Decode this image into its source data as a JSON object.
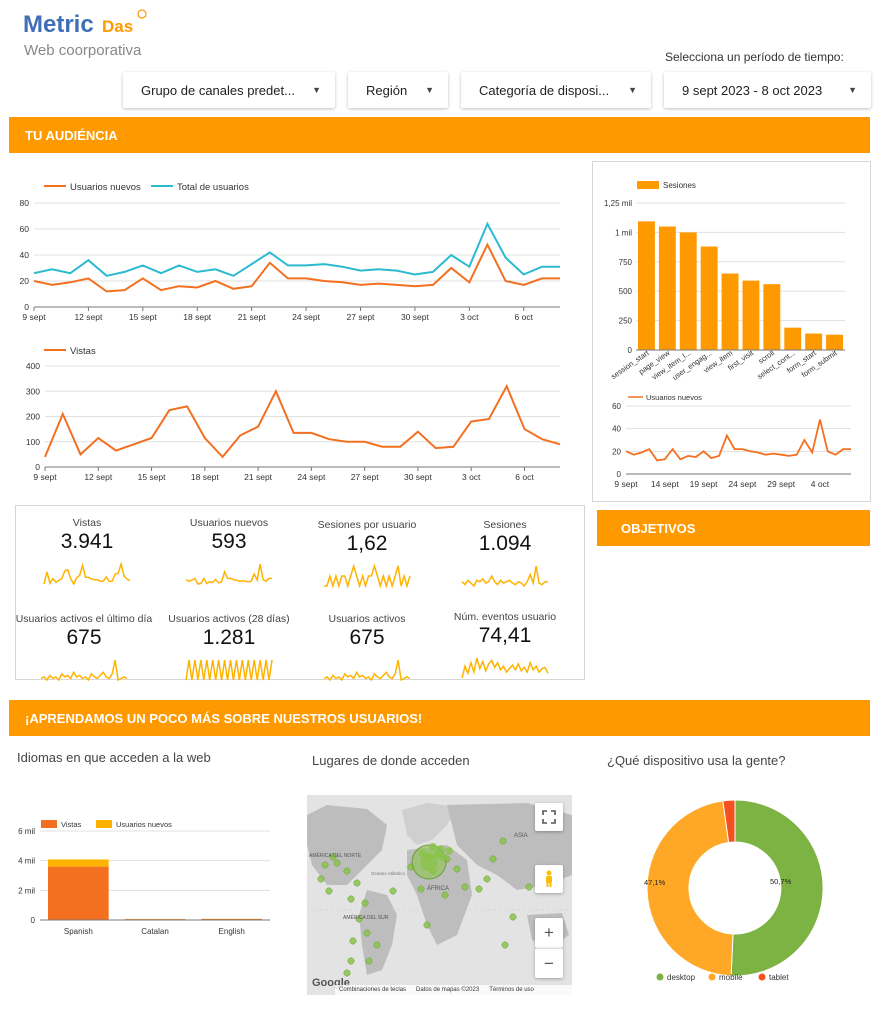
{
  "header": {
    "logo_metric": "Metric",
    "logo_das": "Das",
    "subtitle": "Web coorporativa",
    "period_label": "Selecciona un período de tiempo:"
  },
  "filters": {
    "channel": "Grupo de canales predet...",
    "region": "Región",
    "device": "Categoría de disposi...",
    "date_range": "9 sept 2023 - 8 oct 2023"
  },
  "sections": {
    "audience": "TU AUDIÉNCIA",
    "objectives": "OBJETIVOS",
    "learn": "¡APRENDAMOS UN POCO MÁS SOBRE NUESTROS USUARIOS!"
  },
  "colors": {
    "orange": "#ff9900",
    "dark_orange": "#f37021",
    "cyan": "#2bbbd0",
    "green": "#7cb342",
    "yellow": "#ffa726"
  },
  "chart_data": [
    {
      "type": "line",
      "x": [
        "9 sept",
        "10 sept",
        "11 sept",
        "12 sept",
        "13 sept",
        "14 sept",
        "15 sept",
        "16 sept",
        "17 sept",
        "18 sept",
        "19 sept",
        "20 sept",
        "21 sept",
        "22 sept",
        "23 sept",
        "24 sept",
        "25 sept",
        "26 sept",
        "27 sept",
        "28 sept",
        "29 sept",
        "30 sept",
        "1 oct",
        "2 oct",
        "3 oct",
        "4 oct",
        "5 oct",
        "6 oct",
        "7 oct",
        "8 oct"
      ],
      "x_ticks": [
        "9 sept",
        "12 sept",
        "15 sept",
        "18 sept",
        "21 sept",
        "24 sept",
        "27 sept",
        "30 sept",
        "3 oct",
        "6 oct"
      ],
      "ylim": [
        0,
        80
      ],
      "y_ticks": [
        "0",
        "20",
        "40",
        "60",
        "80"
      ],
      "series": [
        {
          "name": "Usuarios nuevos",
          "color": "#f37021",
          "values": [
            20,
            17,
            19,
            22,
            12,
            13,
            22,
            13,
            16,
            15,
            20,
            14,
            16,
            34,
            22,
            22,
            20,
            19,
            17,
            18,
            17,
            16,
            17,
            30,
            19,
            48,
            20,
            17,
            22,
            22
          ]
        },
        {
          "name": "Total de usuarios",
          "color": "#2bbbd0",
          "values": [
            26,
            29,
            26,
            36,
            24,
            27,
            32,
            26,
            32,
            27,
            29,
            24,
            33,
            42,
            32,
            32,
            33,
            31,
            28,
            29,
            28,
            25,
            27,
            40,
            31,
            64,
            38,
            25,
            31,
            31
          ]
        }
      ]
    },
    {
      "type": "line",
      "x_ticks": [
        "9 sept",
        "12 sept",
        "15 sept",
        "18 sept",
        "21 sept",
        "24 sept",
        "27 sept",
        "30 sept",
        "3 oct",
        "6 oct"
      ],
      "ylim": [
        0,
        400
      ],
      "y_ticks": [
        "0",
        "100",
        "200",
        "300",
        "400"
      ],
      "series": [
        {
          "name": "Vistas",
          "color": "#f37021",
          "values": [
            40,
            210,
            50,
            115,
            65,
            90,
            115,
            225,
            240,
            115,
            40,
            125,
            160,
            300,
            135,
            135,
            110,
            100,
            100,
            80,
            80,
            140,
            75,
            80,
            180,
            190,
            320,
            150,
            110,
            90
          ]
        }
      ]
    },
    {
      "type": "bar",
      "legend": "Sesiones",
      "categories": [
        "session_start",
        "page_view",
        "view_item_l...",
        "user_engag...",
        "view_item",
        "first_visit",
        "scroll",
        "select_cont...",
        "form_start",
        "form_submit"
      ],
      "values": [
        1094,
        1050,
        1000,
        880,
        650,
        590,
        560,
        190,
        140,
        130
      ],
      "ylim": [
        0,
        1250
      ],
      "y_ticks": [
        "0",
        "250",
        "500",
        "750",
        "1 mil",
        "1,25 mil"
      ]
    },
    {
      "type": "line",
      "x_ticks": [
        "9 sept",
        "14 sept",
        "19 sept",
        "24 sept",
        "29 sept",
        "4 oct"
      ],
      "ylim": [
        0,
        60
      ],
      "y_ticks": [
        "0",
        "20",
        "40",
        "60"
      ],
      "series": [
        {
          "name": "Usuarios nuevos",
          "color": "#f37021",
          "values": [
            20,
            17,
            19,
            22,
            12,
            13,
            22,
            13,
            16,
            15,
            20,
            14,
            16,
            34,
            22,
            22,
            20,
            19,
            17,
            18,
            17,
            16,
            17,
            30,
            19,
            48,
            20,
            17,
            22,
            22
          ]
        }
      ]
    },
    {
      "type": "bar",
      "categories": [
        "Spanish",
        "Catalan",
        "English"
      ],
      "series": [
        {
          "name": "Vistas",
          "color": "#f37021",
          "values": [
            3600,
            60,
            70
          ]
        },
        {
          "name": "Usuarios nuevos",
          "color": "#ffb300",
          "values": [
            480,
            12,
            10
          ]
        }
      ],
      "ylim": [
        0,
        6000
      ],
      "y_ticks": [
        "0",
        "2 mil",
        "4 mil",
        "6 mil"
      ]
    },
    {
      "type": "pie",
      "labels": [
        "desktop",
        "mobile",
        "tablet"
      ],
      "values": [
        50.7,
        47.1,
        2.2
      ],
      "colors": [
        "#7cb342",
        "#ffa726",
        "#f4511e"
      ],
      "data_labels": [
        "50,7%",
        "47,1%",
        ""
      ]
    }
  ],
  "kpis": [
    {
      "label": "Vistas",
      "value": "3.941"
    },
    {
      "label": "Usuarios nuevos",
      "value": "593"
    },
    {
      "label": "Sesiones por usuario",
      "value": "1,62"
    },
    {
      "label": "Sesiones",
      "value": "1.094"
    },
    {
      "label": "Usuarios activos el último día",
      "value": "675"
    },
    {
      "label": "Usuarios activos (28 días)",
      "value": "1.281"
    },
    {
      "label": "Usuarios activos",
      "value": "675"
    },
    {
      "label": "Núm. eventos usuario",
      "value": "74,41"
    }
  ],
  "bottom": {
    "languages_title": "Idiomas en que acceden a la web",
    "places_title": "Lugares de donde acceden",
    "devices_title": "¿Qué dispositivo usa la gente?"
  },
  "map": {
    "labels": [
      "AMÉRICA DEL NORTE",
      "AMÉRICA DEL SUR",
      "ÁFRICA",
      "ASIA",
      "Océano Atlántico"
    ],
    "footer": [
      "Combinaciones de teclas",
      "Datos de mapas ©2023",
      "Términos de uso"
    ],
    "google": "Google",
    "icons": [
      "fullscreen-icon",
      "pegman-icon",
      "zoom-in-icon",
      "zoom-out-icon"
    ]
  }
}
